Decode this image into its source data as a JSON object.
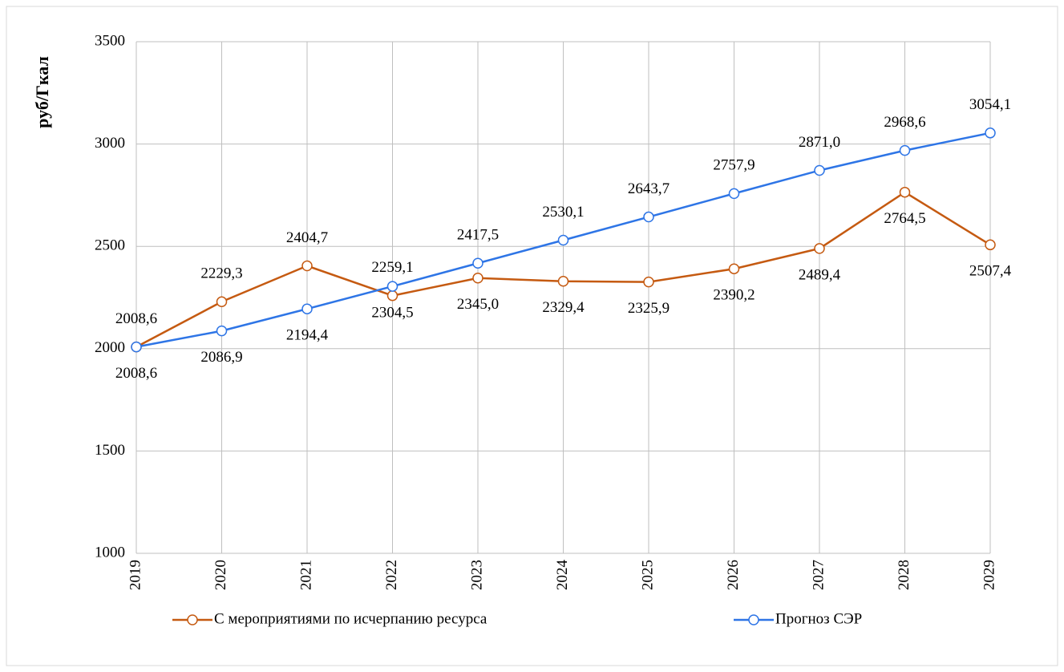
{
  "chart_data": {
    "type": "line",
    "y_label": "руб/Гкал",
    "categories": [
      "2019",
      "2020",
      "2021",
      "2022",
      "2023",
      "2024",
      "2025",
      "2026",
      "2027",
      "2028",
      "2029"
    ],
    "series": [
      {
        "name": "С мероприятиями по исчерпанию ресурса",
        "color": "#c55a11",
        "values": [
          2008.6,
          2229.3,
          2404.7,
          2259.1,
          2345.0,
          2329.4,
          2325.9,
          2390.2,
          2489.4,
          2764.5,
          2507.4
        ],
        "value_labels": [
          "2008,6",
          "2229,3",
          "2404,7",
          "2259,1",
          "2345,0",
          "2329,4",
          "2325,9",
          "2390,2",
          "2489,4",
          "2764,5",
          "2507,4"
        ]
      },
      {
        "name": "Прогноз СЭР",
        "color": "#2e75e6",
        "values": [
          2008.6,
          2086.9,
          2194.4,
          2304.5,
          2417.5,
          2530.1,
          2643.7,
          2757.9,
          2871.0,
          2968.6,
          3054.1
        ],
        "value_labels": [
          "2008,6",
          "2086,9",
          "2194,4",
          "2304,5",
          "2417,5",
          "2530,1",
          "2643,7",
          "2757,9",
          "2871,0",
          "2968,6",
          "3054,1"
        ]
      }
    ],
    "ylim": [
      1000,
      3500
    ],
    "yticks": [
      1000,
      1500,
      2000,
      2500,
      3000,
      3500
    ],
    "grid": true,
    "legend": "bottom"
  }
}
